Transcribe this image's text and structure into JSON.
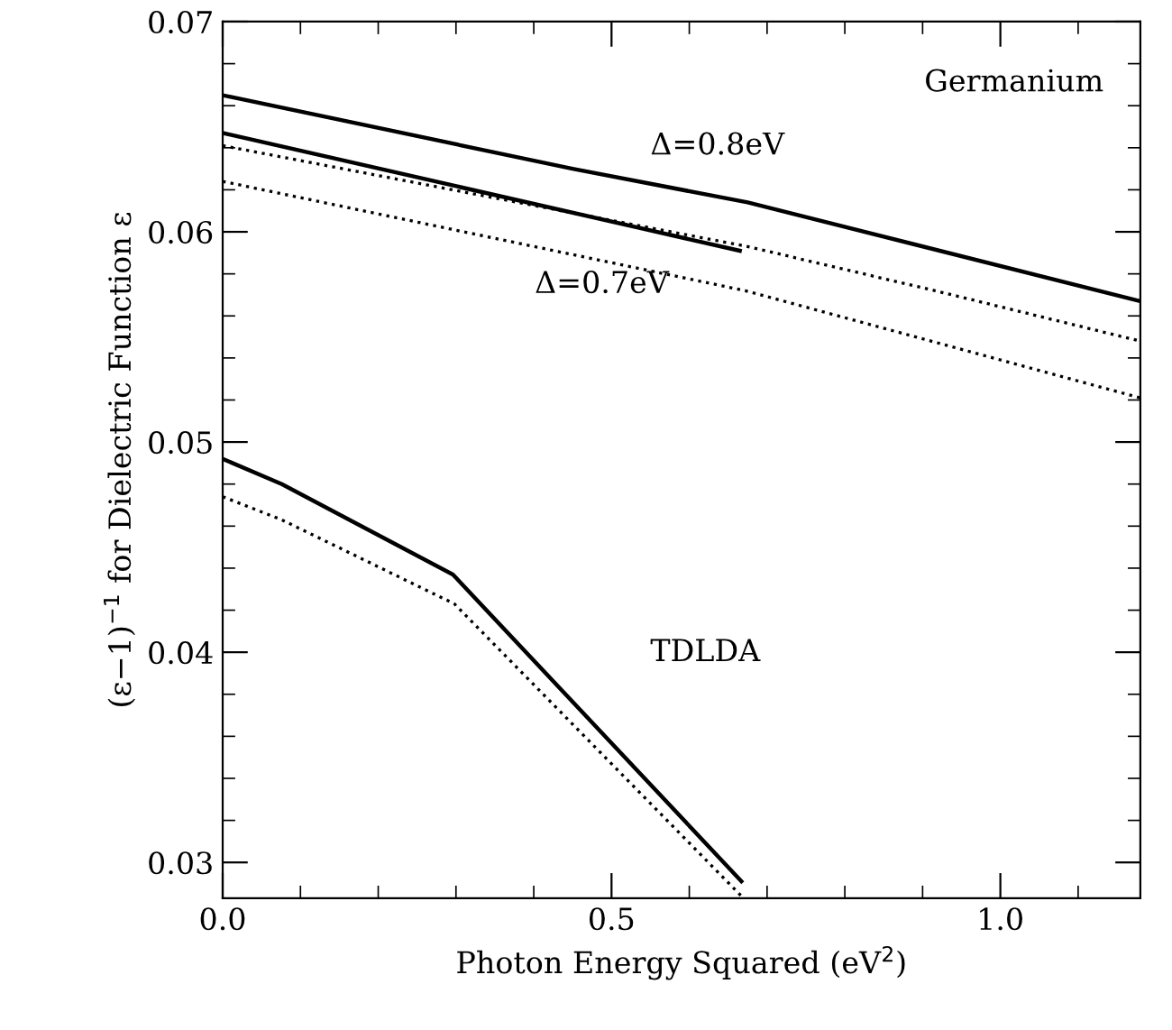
{
  "chart_data": {
    "type": "line",
    "xlabel": "Photon Energy Squared (eV$^{2}$)",
    "ylabel": "(ε−1)$^{−1}$ for Dielectric Function ε",
    "xlim": [
      0,
      1.18
    ],
    "ylim": [
      0.0283,
      0.07
    ],
    "xticks": [
      {
        "value": 0,
        "label": "0.0"
      },
      0.5,
      {
        "value": 1,
        "label": "1.0"
      }
    ],
    "yticks": [
      0.03,
      0.04,
      0.05,
      0.06,
      0.07
    ],
    "grid": false,
    "legend": false,
    "marker": "none",
    "series": [
      {
        "color": "#000000",
        "line_style": "solid",
        "x": [
          0,
          0.45,
          0.675,
          1.18
        ],
        "values": [
          0.0665,
          0.063,
          0.0614,
          0.0567
        ]
      },
      {
        "color": "#000000",
        "line_style": "dotted",
        "x": [
          0,
          0.675,
          0.916,
          1.18
        ],
        "values": [
          0.0641,
          0.0593,
          0.0572,
          0.0548
        ]
      },
      {
        "color": "#000000",
        "line_style": "solid",
        "x": [
          0,
          0.665
        ],
        "values": [
          0.0647,
          0.0591
        ]
      },
      {
        "color": "#000000",
        "line_style": "dotted",
        "x": [
          0,
          0.672,
          1.18
        ],
        "values": [
          0.0624,
          0.0572,
          0.0521
        ]
      },
      {
        "color": "#000000",
        "line_style": "solid",
        "x": [
          0,
          0.076,
          0.296,
          0.667
        ],
        "values": [
          0.0492,
          0.048,
          0.0437,
          0.0291
        ]
      },
      {
        "color": "#000000",
        "line_style": "dotted",
        "x": [
          0,
          0.076,
          0.298,
          0.667
        ],
        "values": [
          0.0474,
          0.0463,
          0.0423,
          0.0284
        ]
      }
    ],
    "annotations": [
      "Germanium",
      "Δ=0.8eV",
      "Δ=0.7eV",
      "TDLDA"
    ]
  }
}
